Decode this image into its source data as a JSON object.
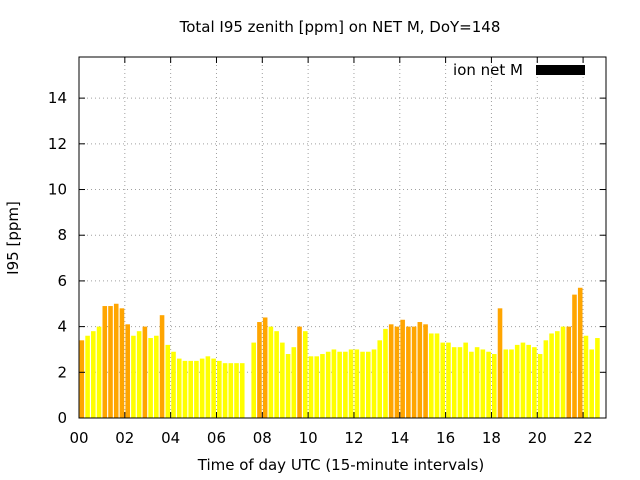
{
  "chart_data": {
    "type": "bar",
    "title": "Total I95 zenith [ppm] on NET M, DoY=148",
    "xlabel": "Time of day UTC (15-minute intervals)",
    "ylabel": "I95 [ppm]",
    "xlim": [
      0,
      23
    ],
    "ylim": [
      0,
      15.8
    ],
    "xticks": [
      0,
      2,
      4,
      6,
      8,
      10,
      12,
      14,
      16,
      18,
      20,
      22
    ],
    "xtick_labels": [
      "00",
      "02",
      "04",
      "06",
      "08",
      "10",
      "12",
      "14",
      "16",
      "18",
      "20",
      "22"
    ],
    "yticks": [
      0,
      2,
      4,
      6,
      8,
      10,
      12,
      14
    ],
    "ytick_labels": [
      "0",
      "2",
      "4",
      "6",
      "8",
      "10",
      "12",
      "14"
    ],
    "grid": true,
    "legend": {
      "placement": "top-right",
      "entries": [
        {
          "label": "ion net M",
          "color": "#000000"
        }
      ]
    },
    "colors": {
      "low": "#ffff00",
      "mid": "#ffd700",
      "high": "#ffa500"
    },
    "bar_width_hours": 0.2,
    "x_start_hours": 0.125,
    "x_step_hours": 0.25,
    "values": [
      3.4,
      3.6,
      3.8,
      4.0,
      4.9,
      4.9,
      5.0,
      4.8,
      4.1,
      3.6,
      3.8,
      4.0,
      3.5,
      3.6,
      4.5,
      3.2,
      2.9,
      2.6,
      2.5,
      2.5,
      2.5,
      2.6,
      2.7,
      2.6,
      2.5,
      2.4,
      2.4,
      2.4,
      2.4,
      0,
      3.3,
      4.2,
      4.4,
      4.0,
      3.8,
      3.3,
      2.8,
      3.1,
      4.0,
      3.8,
      2.7,
      2.7,
      2.8,
      2.9,
      3.0,
      2.9,
      2.9,
      3.0,
      3.0,
      2.9,
      2.9,
      3.0,
      3.4,
      3.9,
      4.1,
      4.0,
      4.3,
      4.0,
      4.0,
      4.2,
      4.1,
      3.7,
      3.7,
      3.3,
      3.3,
      3.1,
      3.1,
      3.3,
      2.9,
      3.1,
      3.0,
      2.9,
      2.8,
      4.8,
      3.0,
      3.0,
      3.2,
      3.3,
      3.2,
      3.1,
      2.8,
      3.4,
      3.7,
      3.8,
      4.0,
      4.0,
      5.4,
      5.7,
      3.6,
      3.0,
      3.5
    ],
    "categories": [
      "high",
      "low",
      "low",
      "low",
      "high",
      "high",
      "high",
      "high",
      "high",
      "low",
      "low",
      "high",
      "low",
      "low",
      "high",
      "low",
      "low",
      "low",
      "low",
      "low",
      "low",
      "low",
      "low",
      "low",
      "low",
      "low",
      "low",
      "low",
      "low",
      "low",
      "low",
      "high",
      "high",
      "low",
      "low",
      "low",
      "low",
      "low",
      "high",
      "low",
      "low",
      "low",
      "low",
      "low",
      "low",
      "low",
      "low",
      "low",
      "low",
      "low",
      "low",
      "low",
      "low",
      "low",
      "high",
      "high",
      "high",
      "high",
      "high",
      "high",
      "high",
      "low",
      "low",
      "low",
      "low",
      "low",
      "low",
      "low",
      "low",
      "low",
      "low",
      "low",
      "low",
      "high",
      "low",
      "low",
      "low",
      "low",
      "low",
      "low",
      "low",
      "low",
      "low",
      "low",
      "low",
      "high",
      "high",
      "high",
      "low",
      "low",
      "low"
    ]
  }
}
